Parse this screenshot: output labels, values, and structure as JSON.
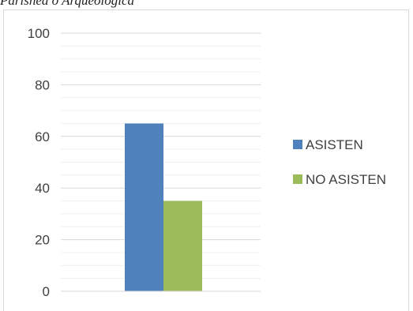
{
  "caption": "Parishea o Arqueologica",
  "chart_data": {
    "type": "bar",
    "categories": [
      ""
    ],
    "series": [
      {
        "name": "ASISTEN",
        "values": [
          65
        ],
        "color": "#4f81bd"
      },
      {
        "name": "NO ASISTEN",
        "values": [
          35
        ],
        "color": "#9bbb59"
      }
    ],
    "title": "",
    "xlabel": "",
    "ylabel": "",
    "ylim": [
      0,
      100
    ],
    "yticks": [
      0,
      20,
      40,
      60,
      80,
      100
    ],
    "grid": true,
    "legend": "right"
  }
}
